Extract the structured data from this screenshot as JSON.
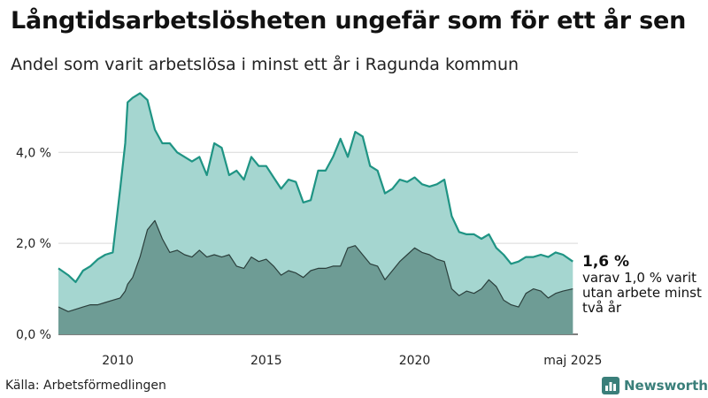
{
  "title": "Långtidsarbetslösheten ungefär som för ett år sen",
  "subtitle": "Andel som varit arbetslösa i minst ett år i Ragunda kommun",
  "source": "Källa: Arbetsförmedlingen",
  "brand": {
    "name": "Newsworthy",
    "icon": "newsworthy-logo-icon"
  },
  "end_label": {
    "value": "1,6 %",
    "note": "varav 1,0 % varit utan arbete minst två år"
  },
  "colors": {
    "total_fill": "#a5d6d0",
    "total_line": "#1f9484",
    "long_fill": "#6e9c95",
    "long_line": "#2b3f3c",
    "grid": "#d9d9d9"
  },
  "chart_data": {
    "type": "area",
    "title": "Långtidsarbetslösheten ungefär som för ett år sen",
    "subtitle": "Andel som varit arbetslösa i minst ett år i Ragunda kommun",
    "ylim": [
      0,
      5.6
    ],
    "yticks": [
      0,
      2,
      4
    ],
    "ytick_labels": [
      "0,0 %",
      "2,0 %",
      "4,0 %"
    ],
    "xtick_labels": [
      "2010",
      "2015",
      "2020",
      "maj 2025"
    ],
    "xticks": [
      2010.0,
      2015.0,
      2020.0,
      2025.33
    ],
    "xlim": [
      2008.0,
      2025.5
    ],
    "grid": true,
    "series": [
      {
        "name": "",
        "x": [
          2008.0,
          2008.33,
          2008.58,
          2008.83,
          2009.08,
          2009.33,
          2009.58,
          2009.83,
          2010.08,
          2010.25,
          2010.33,
          2010.5,
          2010.75,
          2011.0,
          2011.25,
          2011.5,
          2011.75,
          2012.0,
          2012.25,
          2012.5,
          2012.75,
          2013.0,
          2013.25,
          2013.5,
          2013.75,
          2014.0,
          2014.25,
          2014.5,
          2014.75,
          2015.0,
          2015.25,
          2015.5,
          2015.75,
          2016.0,
          2016.25,
          2016.5,
          2016.75,
          2017.0,
          2017.25,
          2017.5,
          2017.75,
          2018.0,
          2018.25,
          2018.5,
          2018.75,
          2019.0,
          2019.25,
          2019.5,
          2019.75,
          2020.0,
          2020.25,
          2020.5,
          2020.75,
          2021.0,
          2021.25,
          2021.5,
          2021.75,
          2022.0,
          2022.25,
          2022.5,
          2022.75,
          2023.0,
          2023.25,
          2023.5,
          2023.75,
          2024.0,
          2024.25,
          2024.5,
          2024.75,
          2025.0,
          2025.33
        ],
        "values": [
          1.45,
          1.3,
          1.15,
          1.4,
          1.5,
          1.65,
          1.75,
          1.8,
          3.2,
          4.2,
          5.1,
          5.2,
          5.3,
          5.15,
          4.5,
          4.2,
          4.2,
          4.0,
          3.9,
          3.8,
          3.9,
          3.5,
          4.2,
          4.1,
          3.5,
          3.6,
          3.4,
          3.9,
          3.7,
          3.7,
          3.45,
          3.2,
          3.4,
          3.35,
          2.9,
          2.95,
          3.6,
          3.6,
          3.9,
          4.3,
          3.9,
          4.45,
          4.35,
          3.7,
          3.6,
          3.1,
          3.2,
          3.4,
          3.35,
          3.45,
          3.3,
          3.25,
          3.3,
          3.4,
          2.6,
          2.25,
          2.2,
          2.2,
          2.1,
          2.2,
          1.9,
          1.75,
          1.55,
          1.6,
          1.7,
          1.7,
          1.75,
          1.7,
          1.8,
          1.75,
          1.6
        ]
      },
      {
        "name": "",
        "x": [
          2008.0,
          2008.33,
          2008.58,
          2008.83,
          2009.08,
          2009.33,
          2009.58,
          2009.83,
          2010.08,
          2010.25,
          2010.33,
          2010.5,
          2010.75,
          2011.0,
          2011.25,
          2011.5,
          2011.75,
          2012.0,
          2012.25,
          2012.5,
          2012.75,
          2013.0,
          2013.25,
          2013.5,
          2013.75,
          2014.0,
          2014.25,
          2014.5,
          2014.75,
          2015.0,
          2015.25,
          2015.5,
          2015.75,
          2016.0,
          2016.25,
          2016.5,
          2016.75,
          2017.0,
          2017.25,
          2017.5,
          2017.75,
          2018.0,
          2018.25,
          2018.5,
          2018.75,
          2019.0,
          2019.25,
          2019.5,
          2019.75,
          2020.0,
          2020.25,
          2020.5,
          2020.75,
          2021.0,
          2021.25,
          2021.5,
          2021.75,
          2022.0,
          2022.25,
          2022.5,
          2022.75,
          2023.0,
          2023.25,
          2023.5,
          2023.75,
          2024.0,
          2024.25,
          2024.5,
          2024.75,
          2025.0,
          2025.33
        ],
        "values": [
          0.6,
          0.5,
          0.55,
          0.6,
          0.65,
          0.65,
          0.7,
          0.75,
          0.8,
          0.95,
          1.1,
          1.25,
          1.7,
          2.3,
          2.5,
          2.1,
          1.8,
          1.85,
          1.75,
          1.7,
          1.85,
          1.7,
          1.75,
          1.7,
          1.75,
          1.5,
          1.45,
          1.7,
          1.6,
          1.65,
          1.5,
          1.3,
          1.4,
          1.35,
          1.25,
          1.4,
          1.45,
          1.45,
          1.5,
          1.5,
          1.9,
          1.95,
          1.75,
          1.55,
          1.5,
          1.2,
          1.4,
          1.6,
          1.75,
          1.9,
          1.8,
          1.75,
          1.65,
          1.6,
          1.0,
          0.85,
          0.95,
          0.9,
          1.0,
          1.2,
          1.05,
          0.75,
          0.65,
          0.6,
          0.9,
          1.0,
          0.95,
          0.8,
          0.9,
          0.95,
          1.0
        ]
      }
    ]
  }
}
